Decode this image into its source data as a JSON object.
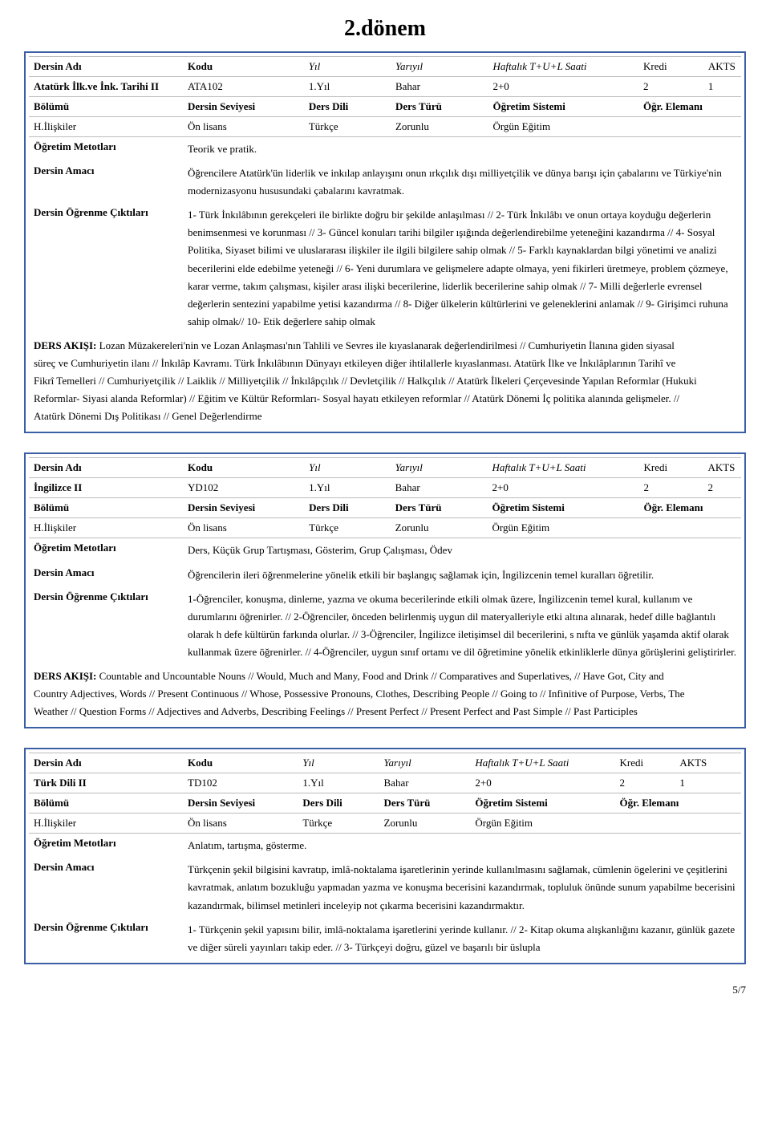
{
  "page_title": "2.dönem",
  "page_number": "5/7",
  "labels": {
    "dersin_adi": "Dersin Adı",
    "kodu": "Kodu",
    "yil": "Yıl",
    "yariyil": "Yarıyıl",
    "haftalik": "Haftalık T+U+L Saati",
    "kredi": "Kredi",
    "akts": "AKTS",
    "bolumu": "Bölümü",
    "seviye": "Dersin Seviyesi",
    "dili": "Ders Dili",
    "turu": "Ders Türü",
    "sistem": "Öğretim Sistemi",
    "eleman": "Öğr. Elemanı",
    "metot": "Öğretim Metotları",
    "amac": "Dersin Amacı",
    "cikti": "Dersin Öğrenme Çıktıları",
    "akisi_prefix": "DERS AKIŞI:"
  },
  "courses": [
    {
      "name": "Atatürk İlk.ve İnk. Tarihi II",
      "code": "ATA102",
      "year": "1.Yıl",
      "semester": "Bahar",
      "hours": "2+0",
      "credit": "2",
      "akts": "1",
      "dept": "H.İlişkiler",
      "level": "Ön lisans",
      "lang": "Türkçe",
      "type": "Zorunlu",
      "system": "Örgün Eğitim",
      "instructor": "",
      "methods": "Teorik ve pratik.",
      "purpose": "Öğrencilere Atatürk'ün liderlik ve inkılap anlayışını onun ırkçılık dışı milliyetçilik ve dünya barışı için çabalarını ve Türkiye'nin modernizasyonu hususundaki çabalarını kavratmak.",
      "outcomes": "1-  Türk İnkılâbının gerekçeleri ile birlikte doğru bir şekilde anlaşılması // 2-  Türk İnkılâbı ve onun ortaya koyduğu değerlerin benimsenmesi ve korunması // 3-  Güncel konuları tarihi bilgiler ışığında değerlendirebilme yeteneğini kazandırma // 4-  Sosyal Politika, Siyaset bilimi ve uluslararası ilişkiler ile ilgili bilgilere sahip olmak // 5-  Farklı kaynaklardan bilgi yönetimi ve analizi becerilerini elde edebilme yeteneği // 6-  Yeni durumlara ve gelişmelere adapte olmaya, yeni fikirleri üretmeye, problem çözmeye, karar verme, takım çalışması, kişiler arası ilişki becerilerine, liderlik becerilerine sahip olmak // 7-  Milli değerlerle evrensel değerlerin sentezini yapabilme yetisi kazandırma // 8-  Diğer ülkelerin kültürlerini ve geleneklerini anlamak // 9-  Girişimci ruhuna sahip olmak// 10- Etik değerlere sahip olmak",
      "flow": " Lozan Müzakereleri'nin ve Lozan Anlaşması'nın Tahlili ve Sevres ile kıyaslanarak değerlendirilmesi // Cumhuriyetin İlanına giden siyasal süreç ve Cumhuriyetin ilanı // İnkılâp Kavramı. Türk İnkılâbının Dünyayı etkileyen diğer ihtilallerle kıyaslanması. Atatürk İlke ve İnkılâplarının Tarihî ve Fikrî Temelleri // Cumhuriyetçilik // Laiklik // Milliyetçilik // İnkılâpçılık // Devletçilik // Halkçılık // Atatürk İlkeleri Çerçevesinde Yapılan Reformlar (Hukuki Reformlar- Siyasi alanda Reformlar) // Eğitim ve Kültür Reformları- Sosyal hayatı etkileyen reformlar // Atatürk Dönemi İç politika alanında gelişmeler. // Atatürk Dönemi Dış Politikası // Genel Değerlendirme"
    },
    {
      "name": "İngilizce II",
      "code": "YD102",
      "year": "1.Yıl",
      "semester": "Bahar",
      "hours": "2+0",
      "credit": "2",
      "akts": "2",
      "dept": "H.İlişkiler",
      "level": "Ön lisans",
      "lang": "Türkçe",
      "type": "Zorunlu",
      "system": "Örgün Eğitim",
      "instructor": "",
      "methods": "Ders, Küçük Grup Tartışması, Gösterim, Grup Çalışması, Ödev",
      "purpose": "Öğrencilerin ileri öğrenmelerine yönelik etkili bir başlangıç sağlamak için, İngilizcenin temel kuralları öğretilir.",
      "outcomes": "1-Öğrenciler, konuşma, dinleme, yazma ve okuma becerilerinde etkili olmak üzere, İngilizcenin temel kural, kullanım ve durumlarını öğrenirler. // 2-Öğrenciler, önceden belirlenmiş uygun dil materyalleriyle etki altına alınarak, hedef dille bağlantılı olarak h   defe kültürün farkında olurlar. // 3-Öğrenciler, İngilizce iletişimsel dil becerilerini, s   nıfta ve günlük yaşamda aktif olarak kullanmak üzere öğrenirler. // 4-Öğrenciler, uygun sınıf ortamı ve dil öğretimine yönelik etkinliklerle dünya görüşlerini geliştirirler.",
      "flow": " Countable and Uncountable Nouns // Would, Much and Many, Food and Drink // Comparatives and Superlatives, // Have Got, City and Country Adjectives, Words // Present Continuous // Whose, Possessive Pronouns, Clothes, Describing People // Going to // Infinitive of Purpose, Verbs, The Weather // Question Forms // Adjectives and Adverbs, Describing Feelings // Present Perfect // Present Perfect and Past Simple // Past Participles"
    },
    {
      "name": "Türk Dili II",
      "code": "TD102",
      "year": "1.Yıl",
      "semester": "Bahar",
      "hours": "2+0",
      "credit": "2",
      "akts": "1",
      "dept": "H.İlişkiler",
      "level": "Ön lisans",
      "lang": "Türkçe",
      "type": "Zorunlu",
      "system": "Örgün Eğitim",
      "instructor": "",
      "methods": "Anlatım, tartışma, gösterme.",
      "purpose": "Türkçenin şekil bilgisini kavratıp, imlâ-noktalama işaretlerinin yerinde kullanılmasını sağlamak, cümlenin ögelerini ve çeşitlerini kavratmak, anlatım bozukluğu yapmadan yazma ve konuşma becerisini kazandırmak, topluluk önünde sunum yapabilme becerisini kazandırmak, bilimsel metinleri inceleyip not çıkarma becerisini kazandırmaktır.",
      "outcomes": "1- Türkçenin şekil yapısını bilir, imlâ-noktalama işaretlerini yerinde kullanır. // 2- Kitap okuma alışkanlığını kazanır, günlük gazete ve diğer süreli yayınları takip eder. // 3- Türkçeyi doğru, güzel ve başarılı bir üslupla",
      "flow": ""
    }
  ]
}
